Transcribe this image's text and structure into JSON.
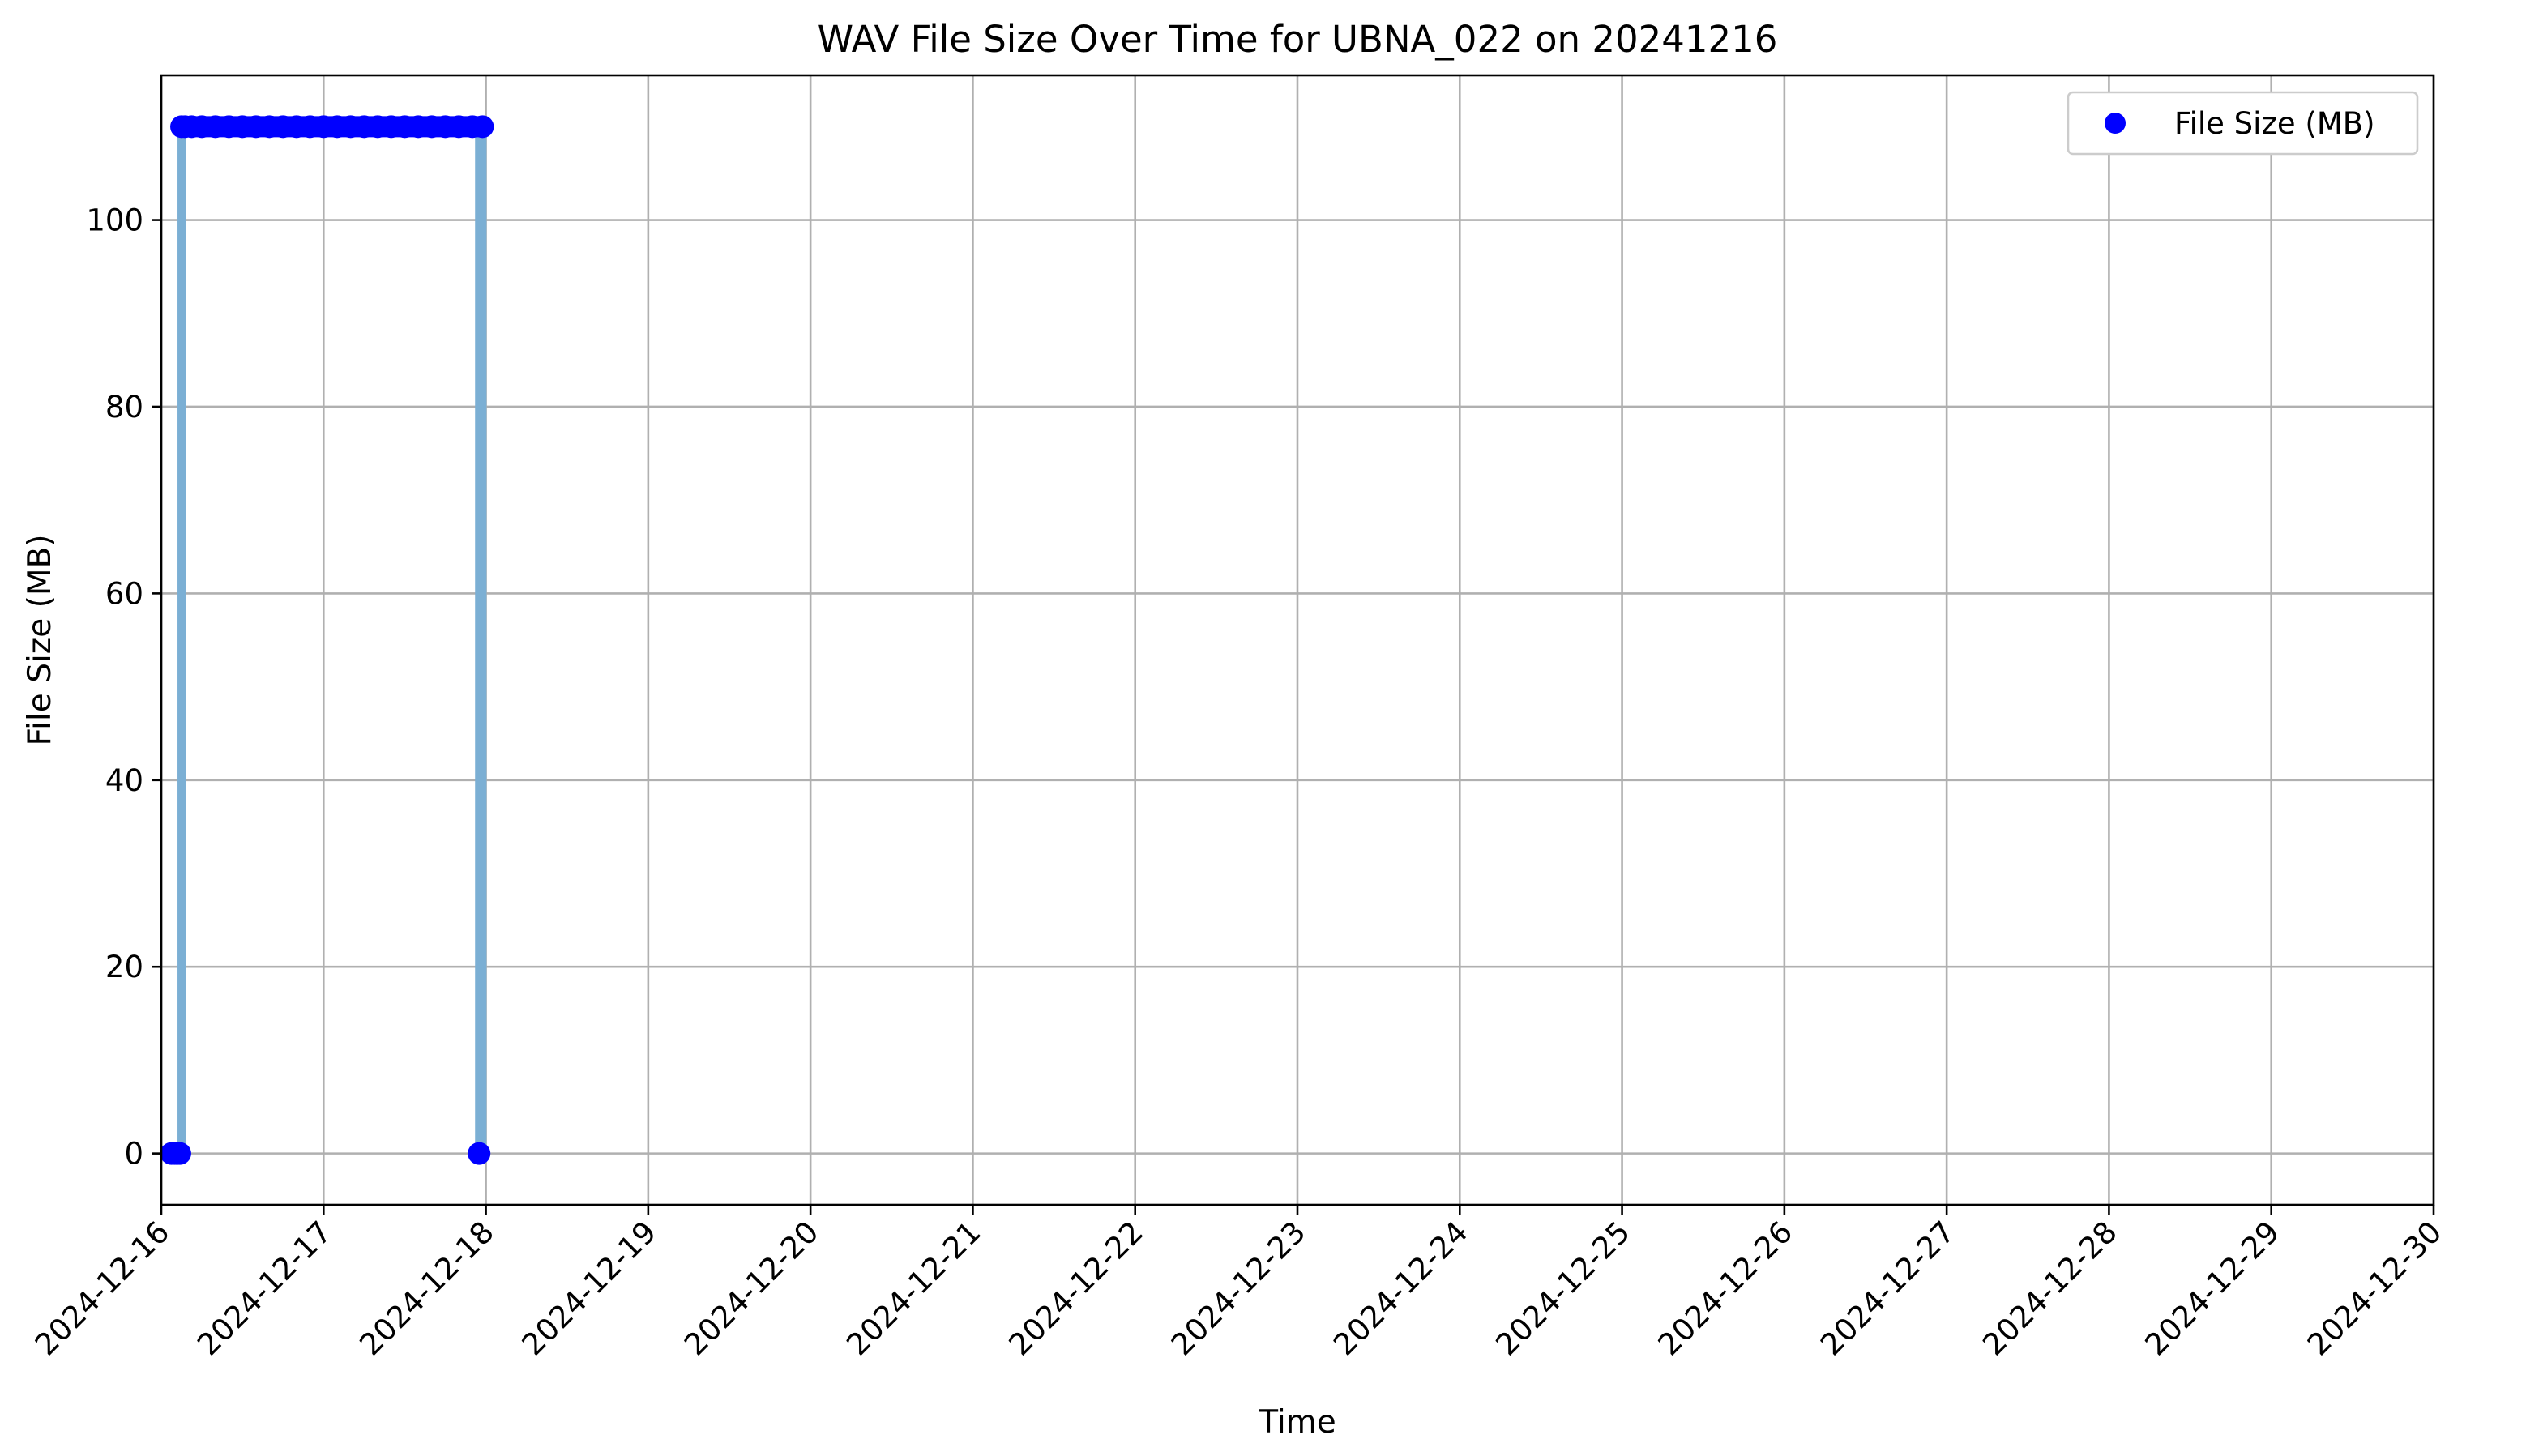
{
  "chart_data": {
    "type": "scatter",
    "title": "WAV File Size Over Time for UBNA_022 on 20241216",
    "xlabel": "Time",
    "ylabel": "File Size (MB)",
    "xlim": [
      "2024-12-16",
      "2024-12-30"
    ],
    "ylim": [
      -5.5,
      115.5
    ],
    "x_ticks": [
      "2024-12-16",
      "2024-12-17",
      "2024-12-18",
      "2024-12-19",
      "2024-12-20",
      "2024-12-21",
      "2024-12-22",
      "2024-12-23",
      "2024-12-24",
      "2024-12-25",
      "2024-12-26",
      "2024-12-27",
      "2024-12-28",
      "2024-12-29",
      "2024-12-30"
    ],
    "y_ticks": [
      0,
      20,
      40,
      60,
      80,
      100
    ],
    "grid": true,
    "legend_position": "top-right",
    "colors": {
      "points": "#0000ff",
      "stems": "#7bafd4"
    },
    "series": [
      {
        "name": "File Size (MB)",
        "x": [
          "2024-12-16 01:30",
          "2024-12-16 01:45",
          "2024-12-16 02:00",
          "2024-12-16 02:15",
          "2024-12-16 02:30",
          "2024-12-16 02:45",
          "2024-12-16 03:00",
          "2024-12-16 03:30",
          "2024-12-16 04:30",
          "2024-12-16 06:00",
          "2024-12-16 08:00",
          "2024-12-16 10:00",
          "2024-12-16 12:00",
          "2024-12-16 14:00",
          "2024-12-16 16:00",
          "2024-12-16 18:00",
          "2024-12-16 20:00",
          "2024-12-16 22:00",
          "2024-12-17 00:00",
          "2024-12-17 02:00",
          "2024-12-17 04:00",
          "2024-12-17 06:00",
          "2024-12-17 08:00",
          "2024-12-17 10:00",
          "2024-12-17 12:00",
          "2024-12-17 14:00",
          "2024-12-17 16:00",
          "2024-12-17 18:00",
          "2024-12-17 20:00",
          "2024-12-17 22:00",
          "2024-12-17 23:00",
          "2024-12-17 23:30"
        ],
        "values": [
          0,
          0,
          0,
          0,
          0,
          0,
          110,
          110,
          110,
          110,
          110,
          110,
          110,
          110,
          110,
          110,
          110,
          110,
          110,
          110,
          110,
          110,
          110,
          110,
          110,
          110,
          110,
          110,
          110,
          110,
          0,
          110
        ]
      }
    ]
  }
}
